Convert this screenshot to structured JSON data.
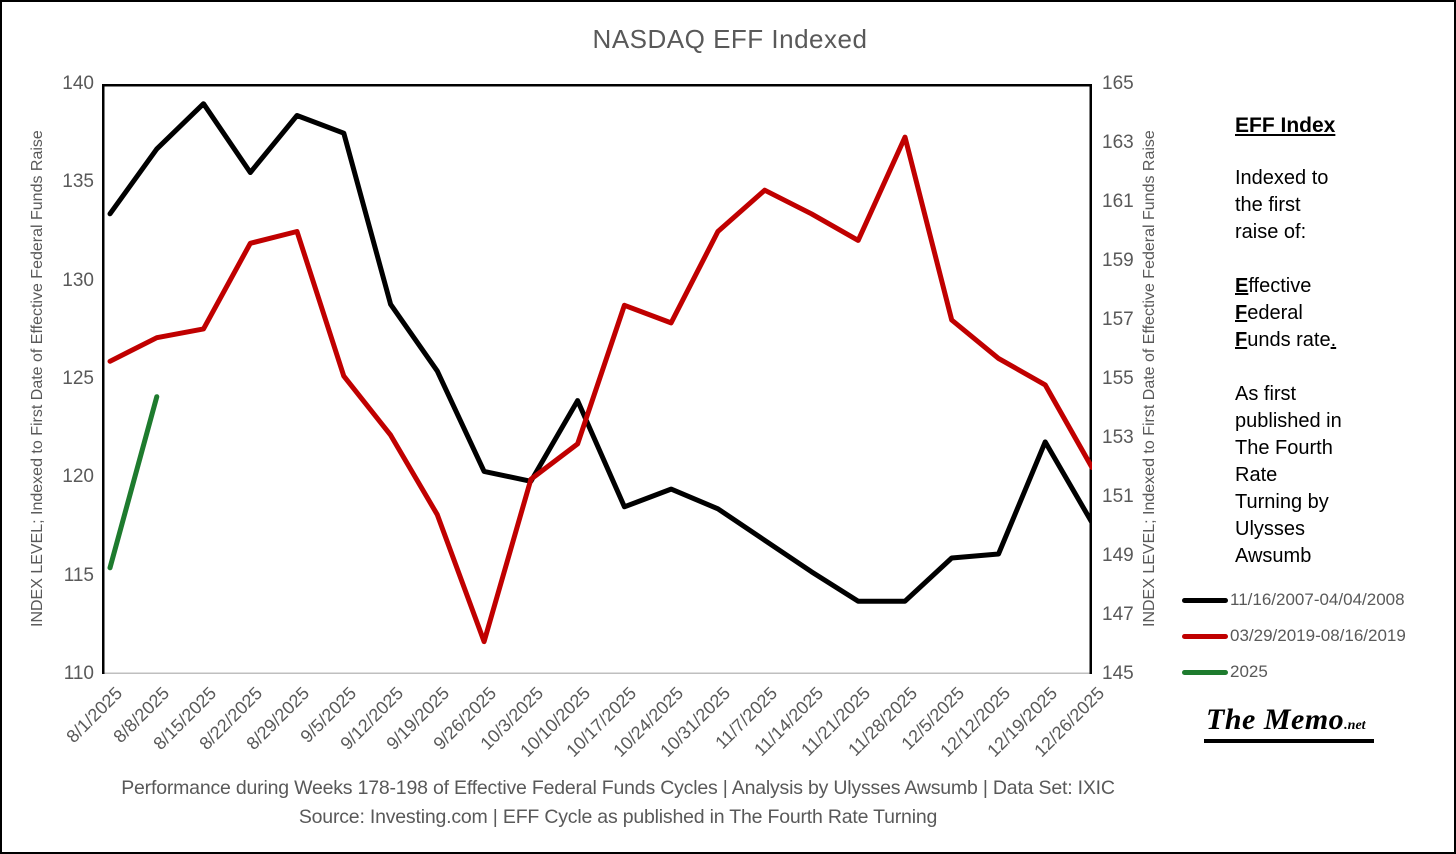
{
  "title": "NASDAQ EFF Indexed",
  "chart_data": {
    "type": "line",
    "title": "NASDAQ EFF Indexed",
    "grid": false,
    "legend_position": "right",
    "categories": [
      "8/1/2025",
      "8/8/2025",
      "8/15/2025",
      "8/22/2025",
      "8/29/2025",
      "9/5/2025",
      "9/12/2025",
      "9/19/2025",
      "9/26/2025",
      "10/3/2025",
      "10/10/2025",
      "10/17/2025",
      "10/24/2025",
      "10/31/2025",
      "11/7/2025",
      "11/14/2025",
      "11/21/2025",
      "11/28/2025",
      "12/5/2025",
      "12/12/2025",
      "12/19/2025",
      "12/26/2025"
    ],
    "left_axis": {
      "label": "INDEX LEVEL; Indexed to First Date of Effective Federal Funds Raise",
      "min": 110,
      "max": 140,
      "tick_step": 5
    },
    "right_axis": {
      "label": "INDEX LEVEL; Indexed to First Date of Effective Federal Funds Raise",
      "min": 145,
      "max": 165,
      "tick_step": 2
    },
    "series": [
      {
        "id": "2007-2008",
        "name": "11/16/2007-04/04/2008",
        "color": "#000000",
        "axis": "left",
        "values": [
          133.4,
          136.7,
          139.0,
          135.5,
          138.4,
          137.5,
          128.8,
          125.4,
          120.3,
          119.8,
          123.9,
          118.5,
          119.4,
          118.4,
          116.8,
          115.2,
          113.7,
          113.7,
          115.9,
          116.1,
          121.8,
          117.7
        ]
      },
      {
        "id": "2019",
        "name": "03/29/2019-08/16/2019",
        "color": "#C00000",
        "axis": "right",
        "values": [
          155.6,
          156.4,
          156.7,
          159.6,
          160.0,
          155.1,
          153.1,
          150.4,
          146.1,
          151.6,
          152.8,
          157.5,
          156.9,
          160.0,
          161.4,
          160.6,
          159.7,
          163.2,
          157.0,
          155.7,
          154.8,
          152.0
        ]
      },
      {
        "id": "2025",
        "name": "2025",
        "color": "#1E7B2E",
        "axis": "left",
        "values": [
          115.4,
          124.1,
          null,
          null,
          null,
          null,
          null,
          null,
          null,
          null,
          null,
          null,
          null,
          null,
          null,
          null,
          null,
          null,
          null,
          null,
          null,
          null
        ]
      }
    ]
  },
  "legend": [
    {
      "label": "11/16/2007-04/04/2008",
      "color": "#000000"
    },
    {
      "label": "03/29/2019-08/16/2019",
      "color": "#C00000"
    },
    {
      "label": "2025",
      "color": "#1E7B2E"
    }
  ],
  "sidebar": {
    "heading": "EFF Index",
    "para1": "Indexed to\nthe first\nraise of:",
    "eff_lines": [
      {
        "lead": "E",
        "rest": "ffective",
        "tail": ""
      },
      {
        "lead": "F",
        "rest": "ederal",
        "tail": ""
      },
      {
        "lead": "F",
        "rest": "unds rate",
        "tail": "."
      }
    ],
    "para2": "As first\npublished in\nThe Fourth\nRate\nTurning by\nUlysses\nAwsumb",
    "logo_main": "The Memo",
    "logo_suffix": ".net"
  },
  "footer": {
    "line1": "Performance during Weeks 178-198 of Effective Federal Funds Cycles | Analysis  by Ulysses Awsumb | Data Set: IXIC",
    "line2": "Source: Investing.com | EFF Cycle as published in The Fourth Rate Turning"
  },
  "colors": {
    "title_text": "#595959",
    "axis_text": "#595959",
    "footer_text": "#595959",
    "plot_border": "#000000",
    "plot_bottom_border": "#BFBFBF",
    "series_2007": "#000000",
    "series_2019": "#C00000",
    "series_2025": "#1E7B2E"
  }
}
